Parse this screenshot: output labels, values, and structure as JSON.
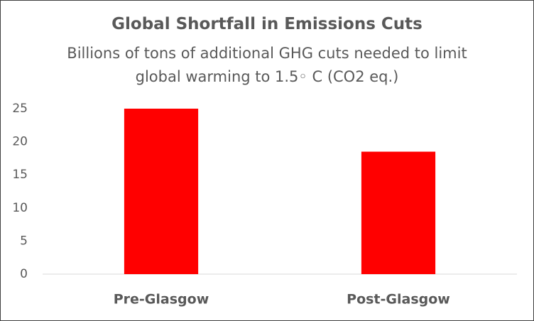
{
  "chart_data": {
    "type": "bar",
    "title": "Global Shortfall in Emissions Cuts",
    "subtitle": "Billions of tons of additional GHG cuts needed to limit global warming to 1.5◦ C (CO2 eq.)",
    "categories": [
      "Pre-Glasgow",
      "Post-Glasgow"
    ],
    "values": [
      25,
      18.5
    ],
    "color": "#ff0000",
    "ylim": [
      0,
      25
    ],
    "yticks": [
      0,
      5,
      10,
      15,
      20,
      25
    ],
    "grid": false
  }
}
